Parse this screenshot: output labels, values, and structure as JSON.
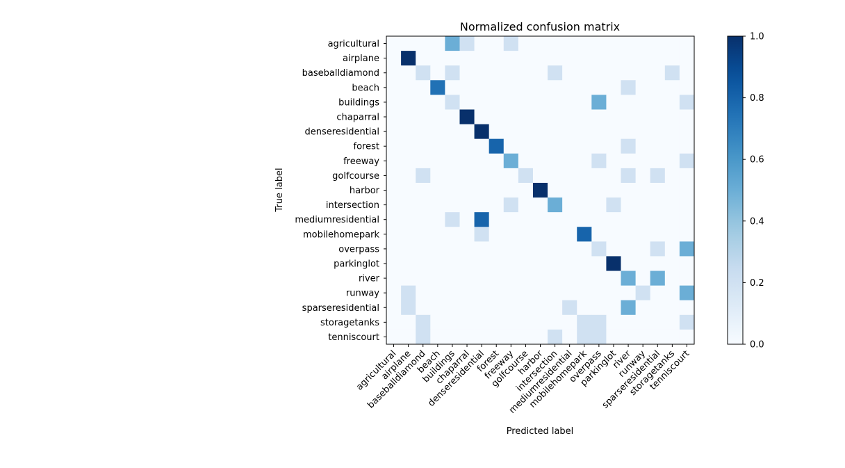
{
  "chart_data": {
    "type": "heatmap",
    "title": "Normalized confusion matrix",
    "xlabel": "Predicted label",
    "ylabel": "True label",
    "labels": [
      "agricultural",
      "airplane",
      "baseballdiamond",
      "beach",
      "buildings",
      "chaparral",
      "denseresidential",
      "forest",
      "freeway",
      "golfcourse",
      "harbor",
      "intersection",
      "mediumresidential",
      "mobilehomepark",
      "overpass",
      "parkinglot",
      "river",
      "runway",
      "sparseresidential",
      "storagetanks",
      "tenniscourt"
    ],
    "matrix": [
      [
        0,
        0,
        0,
        0,
        0,
        0,
        0,
        0,
        0,
        0,
        0,
        0,
        0,
        0,
        0,
        0,
        0,
        0,
        0,
        0,
        0
      ],
      [
        0,
        1,
        0,
        0,
        0,
        0,
        0,
        0,
        0,
        0,
        0,
        0,
        0,
        0,
        0,
        0,
        0,
        0,
        0,
        0,
        0
      ],
      [
        0,
        0,
        0.2,
        0,
        0.2,
        0,
        0,
        0,
        0,
        0,
        0,
        0.2,
        0,
        0,
        0,
        0,
        0,
        0,
        0,
        0.2,
        0
      ],
      [
        0,
        0,
        0,
        0.75,
        0,
        0,
        0,
        0,
        0,
        0,
        0,
        0,
        0,
        0,
        0,
        0,
        0.2,
        0,
        0,
        0,
        0
      ],
      [
        0,
        0,
        0,
        0,
        0.2,
        0,
        0,
        0,
        0,
        0,
        0,
        0,
        0,
        0,
        0.5,
        0,
        0,
        0,
        0,
        0,
        0.2
      ],
      [
        0,
        0,
        0,
        0,
        0,
        1,
        0,
        0,
        0,
        0,
        0,
        0,
        0,
        0,
        0,
        0,
        0,
        0,
        0,
        0,
        0
      ],
      [
        0,
        0,
        0,
        0,
        0,
        0,
        1,
        0,
        0,
        0,
        0,
        0,
        0,
        0,
        0,
        0,
        0,
        0,
        0,
        0,
        0
      ],
      [
        0,
        0,
        0,
        0,
        0,
        0,
        0,
        0.8,
        0,
        0,
        0,
        0,
        0,
        0,
        0,
        0,
        0.2,
        0,
        0,
        0,
        0
      ],
      [
        0,
        0,
        0,
        0,
        0,
        0,
        0,
        0,
        0.5,
        0,
        0,
        0,
        0,
        0,
        0.2,
        0,
        0,
        0,
        0,
        0,
        0.2
      ],
      [
        0,
        0,
        0.2,
        0,
        0,
        0,
        0,
        0,
        0,
        0.2,
        0,
        0,
        0,
        0,
        0,
        0,
        0.2,
        0,
        0.2,
        0,
        0
      ],
      [
        0,
        0,
        0,
        0,
        0,
        0,
        0,
        0,
        0,
        0,
        1,
        0,
        0,
        0,
        0,
        0,
        0,
        0,
        0,
        0,
        0
      ],
      [
        0,
        0,
        0,
        0,
        0,
        0,
        0,
        0,
        0.2,
        0,
        0,
        0.5,
        0,
        0,
        0,
        0.2,
        0,
        0,
        0,
        0,
        0
      ],
      [
        0,
        0,
        0,
        0,
        0.2,
        0,
        0.8,
        0,
        0,
        0,
        0,
        0,
        0,
        0,
        0,
        0,
        0,
        0,
        0,
        0,
        0
      ],
      [
        0,
        0,
        0,
        0,
        0,
        0,
        0.2,
        0,
        0,
        0,
        0,
        0,
        0,
        0.8,
        0,
        0,
        0,
        0,
        0,
        0,
        0
      ],
      [
        0,
        0,
        0,
        0,
        0,
        0,
        0,
        0,
        0,
        0,
        0,
        0,
        0,
        0,
        0.2,
        0,
        0,
        0,
        0.2,
        0,
        0.5
      ],
      [
        0,
        0,
        0,
        0,
        0,
        0,
        0,
        0,
        0,
        0,
        0,
        0,
        0,
        0,
        0,
        1,
        0,
        0,
        0,
        0,
        0
      ],
      [
        0,
        0,
        0,
        0,
        0,
        0,
        0,
        0,
        0,
        0,
        0,
        0,
        0,
        0,
        0,
        0,
        0.5,
        0,
        0.5,
        0,
        0
      ],
      [
        0,
        0.2,
        0,
        0,
        0,
        0,
        0,
        0,
        0,
        0,
        0,
        0,
        0,
        0,
        0,
        0,
        0,
        0.2,
        0,
        0,
        0.5
      ],
      [
        0,
        0.2,
        0,
        0,
        0,
        0,
        0,
        0,
        0,
        0,
        0,
        0,
        0.2,
        0,
        0,
        0,
        0.5,
        0,
        0,
        0,
        0
      ],
      [
        0,
        0,
        0.2,
        0,
        0,
        0,
        0,
        0,
        0,
        0,
        0,
        0,
        0,
        0.2,
        0.2,
        0,
        0,
        0,
        0,
        0,
        0.2
      ],
      [
        0,
        0,
        0.2,
        0,
        0,
        0,
        0,
        0,
        0,
        0,
        0,
        0.2,
        0,
        0.2,
        0.2,
        0,
        0,
        0,
        0,
        0,
        0
      ]
    ],
    "first_row_extra": [
      [
        4,
        0.5
      ],
      [
        5,
        0.2
      ],
      [
        8,
        0.2
      ]
    ],
    "colormap": "Blues",
    "vlim": [
      0,
      1
    ],
    "colorbar_ticks": [
      "0.0",
      "0.2",
      "0.4",
      "0.6",
      "0.8",
      "1.0"
    ],
    "grid": false
  }
}
